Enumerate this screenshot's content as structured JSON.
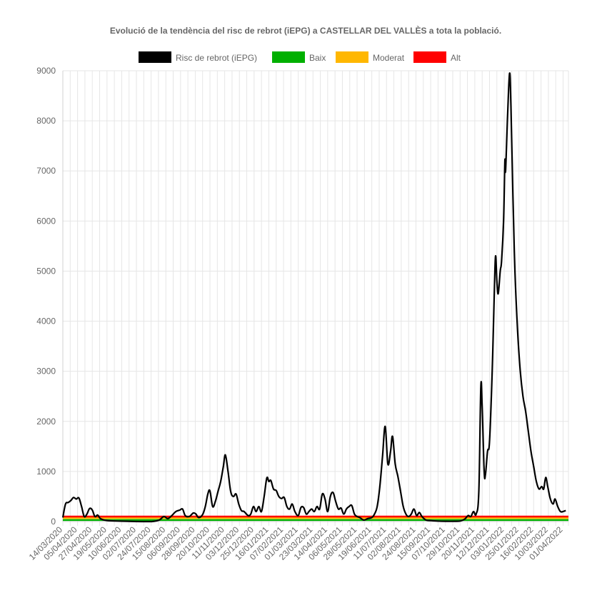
{
  "chart_data": {
    "type": "line",
    "title": "Evolució de la tendència del risc de rebrot (iEPG) a CASTELLAR DEL VALLÈS a tota la població.",
    "xlabel": "",
    "ylabel": "",
    "ylim": [
      0,
      9000
    ],
    "yticks": [
      "0",
      "1000",
      "2000",
      "3000",
      "4000",
      "5000",
      "6000",
      "7000",
      "8000",
      "9000"
    ],
    "x_range": [
      "14/03/2020",
      "09/04/2022"
    ],
    "xticks": [
      "14/03/2020",
      "05/04/2020",
      "27/04/2020",
      "19/05/2020",
      "10/06/2020",
      "02/07/2020",
      "24/07/2020",
      "15/08/2020",
      "06/09/2020",
      "28/09/2020",
      "20/10/2020",
      "11/11/2020",
      "03/12/2020",
      "25/12/2020",
      "16/01/2021",
      "07/02/2021",
      "01/03/2021",
      "23/03/2021",
      "14/04/2021",
      "06/05/2021",
      "28/05/2021",
      "19/06/2021",
      "11/07/2021",
      "02/08/2021",
      "24/08/2021",
      "15/09/2021",
      "07/10/2021",
      "29/10/2021",
      "20/11/2021",
      "12/12/2021",
      "03/01/2022",
      "25/01/2022",
      "16/02/2022",
      "10/03/2022",
      "01/04/2022"
    ],
    "grid": true,
    "legend_position": "top",
    "series": [
      {
        "name": "Risc de rebrot (iEPG)",
        "color": "#000000",
        "points": [
          [
            "14/03/2020",
            80
          ],
          [
            "18/03/2020",
            350
          ],
          [
            "22/03/2020",
            380
          ],
          [
            "26/03/2020",
            420
          ],
          [
            "30/03/2020",
            480
          ],
          [
            "03/04/2020",
            450
          ],
          [
            "07/04/2020",
            470
          ],
          [
            "11/04/2020",
            300
          ],
          [
            "15/04/2020",
            100
          ],
          [
            "19/04/2020",
            150
          ],
          [
            "23/04/2020",
            260
          ],
          [
            "27/04/2020",
            230
          ],
          [
            "01/05/2020",
            100
          ],
          [
            "05/05/2020",
            130
          ],
          [
            "09/05/2020",
            60
          ],
          [
            "15/05/2020",
            30
          ],
          [
            "25/05/2020",
            15
          ],
          [
            "05/06/2020",
            10
          ],
          [
            "20/06/2020",
            5
          ],
          [
            "10/07/2020",
            0
          ],
          [
            "25/07/2020",
            0
          ],
          [
            "05/08/2020",
            30
          ],
          [
            "12/08/2020",
            100
          ],
          [
            "18/08/2020",
            60
          ],
          [
            "24/08/2020",
            120
          ],
          [
            "30/08/2020",
            200
          ],
          [
            "05/09/2020",
            230
          ],
          [
            "09/09/2020",
            250
          ],
          [
            "13/09/2020",
            120
          ],
          [
            "19/09/2020",
            100
          ],
          [
            "25/09/2020",
            170
          ],
          [
            "29/09/2020",
            150
          ],
          [
            "03/10/2020",
            80
          ],
          [
            "09/10/2020",
            140
          ],
          [
            "13/10/2020",
            300
          ],
          [
            "17/10/2020",
            560
          ],
          [
            "20/10/2020",
            610
          ],
          [
            "24/10/2020",
            300
          ],
          [
            "28/10/2020",
            400
          ],
          [
            "01/11/2020",
            600
          ],
          [
            "05/11/2020",
            800
          ],
          [
            "09/11/2020",
            1100
          ],
          [
            "12/11/2020",
            1330
          ],
          [
            "16/11/2020",
            1000
          ],
          [
            "20/11/2020",
            600
          ],
          [
            "24/11/2020",
            500
          ],
          [
            "28/11/2020",
            550
          ],
          [
            "02/12/2020",
            350
          ],
          [
            "06/12/2020",
            220
          ],
          [
            "10/12/2020",
            200
          ],
          [
            "16/12/2020",
            120
          ],
          [
            "20/12/2020",
            150
          ],
          [
            "24/12/2020",
            300
          ],
          [
            "28/12/2020",
            200
          ],
          [
            "01/01/2021",
            300
          ],
          [
            "05/01/2021",
            200
          ],
          [
            "09/01/2021",
            500
          ],
          [
            "13/01/2021",
            870
          ],
          [
            "16/01/2021",
            800
          ],
          [
            "19/01/2021",
            820
          ],
          [
            "23/01/2021",
            650
          ],
          [
            "27/01/2021",
            620
          ],
          [
            "31/01/2021",
            500
          ],
          [
            "04/02/2021",
            460
          ],
          [
            "08/02/2021",
            480
          ],
          [
            "12/02/2021",
            300
          ],
          [
            "16/02/2021",
            250
          ],
          [
            "20/02/2021",
            350
          ],
          [
            "24/02/2021",
            200
          ],
          [
            "01/03/2021",
            120
          ],
          [
            "05/03/2021",
            280
          ],
          [
            "09/03/2021",
            280
          ],
          [
            "13/03/2021",
            150
          ],
          [
            "17/03/2021",
            200
          ],
          [
            "21/03/2021",
            250
          ],
          [
            "25/03/2021",
            200
          ],
          [
            "29/03/2021",
            300
          ],
          [
            "02/04/2021",
            250
          ],
          [
            "06/04/2021",
            550
          ],
          [
            "10/04/2021",
            450
          ],
          [
            "14/04/2021",
            200
          ],
          [
            "18/04/2021",
            500
          ],
          [
            "22/04/2021",
            580
          ],
          [
            "26/04/2021",
            400
          ],
          [
            "30/04/2021",
            250
          ],
          [
            "04/05/2021",
            270
          ],
          [
            "08/05/2021",
            150
          ],
          [
            "12/05/2021",
            250
          ],
          [
            "16/05/2021",
            300
          ],
          [
            "20/05/2021",
            320
          ],
          [
            "24/05/2021",
            150
          ],
          [
            "28/05/2021",
            100
          ],
          [
            "01/06/2021",
            80
          ],
          [
            "07/06/2021",
            30
          ],
          [
            "13/06/2021",
            60
          ],
          [
            "19/06/2021",
            80
          ],
          [
            "23/06/2021",
            150
          ],
          [
            "27/06/2021",
            300
          ],
          [
            "01/07/2021",
            700
          ],
          [
            "05/07/2021",
            1300
          ],
          [
            "09/07/2021",
            1900
          ],
          [
            "13/07/2021",
            1150
          ],
          [
            "17/07/2021",
            1400
          ],
          [
            "20/07/2021",
            1700
          ],
          [
            "24/07/2021",
            1150
          ],
          [
            "28/07/2021",
            900
          ],
          [
            "01/08/2021",
            600
          ],
          [
            "05/08/2021",
            300
          ],
          [
            "09/08/2021",
            150
          ],
          [
            "13/08/2021",
            100
          ],
          [
            "17/08/2021",
            150
          ],
          [
            "21/08/2021",
            250
          ],
          [
            "25/08/2021",
            120
          ],
          [
            "29/08/2021",
            180
          ],
          [
            "02/09/2021",
            100
          ],
          [
            "08/09/2021",
            30
          ],
          [
            "15/09/2021",
            20
          ],
          [
            "25/09/2021",
            10
          ],
          [
            "07/10/2021",
            5
          ],
          [
            "20/10/2021",
            5
          ],
          [
            "29/10/2021",
            10
          ],
          [
            "05/11/2021",
            50
          ],
          [
            "10/11/2021",
            120
          ],
          [
            "14/11/2021",
            100
          ],
          [
            "18/11/2021",
            200
          ],
          [
            "22/11/2021",
            150
          ],
          [
            "26/11/2021",
            600
          ],
          [
            "29/11/2021",
            2680
          ],
          [
            "01/12/2021",
            2300
          ],
          [
            "04/12/2021",
            1000
          ],
          [
            "06/12/2021",
            950
          ],
          [
            "09/12/2021",
            1400
          ],
          [
            "12/12/2021",
            1600
          ],
          [
            "16/12/2021",
            3000
          ],
          [
            "19/12/2021",
            4500
          ],
          [
            "21/12/2021",
            5300
          ],
          [
            "23/12/2021",
            4800
          ],
          [
            "25/12/2021",
            4550
          ],
          [
            "28/12/2021",
            5000
          ],
          [
            "30/12/2021",
            5200
          ],
          [
            "02/01/2022",
            6000
          ],
          [
            "04/01/2022",
            7200
          ],
          [
            "05/01/2022",
            7000
          ],
          [
            "08/01/2022",
            8100
          ],
          [
            "11/01/2022",
            8950
          ],
          [
            "13/01/2022",
            8300
          ],
          [
            "16/01/2022",
            6500
          ],
          [
            "19/01/2022",
            5000
          ],
          [
            "23/01/2022",
            3800
          ],
          [
            "27/01/2022",
            3000
          ],
          [
            "31/01/2022",
            2500
          ],
          [
            "04/02/2022",
            2200
          ],
          [
            "08/02/2022",
            1800
          ],
          [
            "12/02/2022",
            1400
          ],
          [
            "16/02/2022",
            1100
          ],
          [
            "20/02/2022",
            800
          ],
          [
            "24/02/2022",
            650
          ],
          [
            "28/02/2022",
            700
          ],
          [
            "03/03/2022",
            650
          ],
          [
            "06/03/2022",
            880
          ],
          [
            "09/03/2022",
            700
          ],
          [
            "13/03/2022",
            450
          ],
          [
            "17/03/2022",
            350
          ],
          [
            "20/03/2022",
            450
          ],
          [
            "24/03/2022",
            300
          ],
          [
            "28/03/2022",
            200
          ],
          [
            "01/04/2022",
            200
          ],
          [
            "05/04/2022",
            220
          ]
        ]
      },
      {
        "name": "Baix",
        "color": "#00b000",
        "values": [
          30,
          30
        ]
      },
      {
        "name": "Moderat",
        "color": "#ffb700",
        "values": [
          70,
          70
        ]
      },
      {
        "name": "Alt",
        "color": "#ff0000",
        "values": [
          100,
          100
        ]
      }
    ]
  }
}
